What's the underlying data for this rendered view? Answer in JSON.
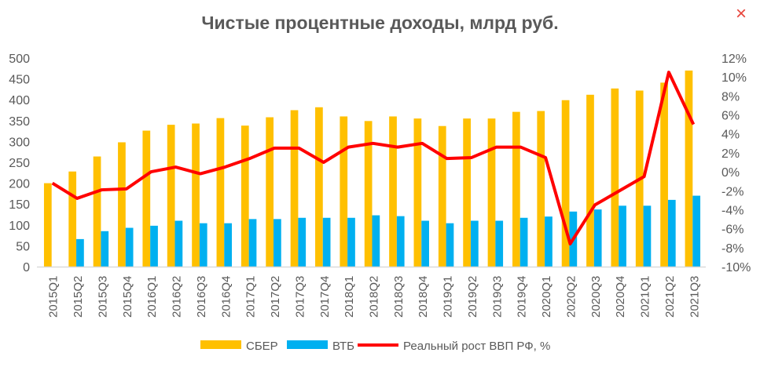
{
  "close_icon": "×",
  "chart_data": {
    "type": "bar",
    "title": "Чистые процентные доходы, млрд руб.",
    "categories": [
      "2015Q1",
      "2015Q2",
      "2015Q3",
      "2015Q4",
      "2016Q1",
      "2016Q2",
      "2016Q3",
      "2016Q4",
      "2017Q1",
      "2017Q2",
      "2017Q3",
      "2017Q4",
      "2018Q1",
      "2018Q2",
      "2018Q3",
      "2018Q4",
      "2019Q1",
      "2019Q2",
      "2019Q3",
      "2019Q4",
      "2020Q1",
      "2020Q2",
      "2020Q3",
      "2020Q4",
      "2021Q1",
      "2021Q2",
      "2021Q3"
    ],
    "series": [
      {
        "name": "СБЕР",
        "type": "bar",
        "axis": "left",
        "color": "#FFC000",
        "values": [
          200,
          228,
          264,
          298,
          326,
          340,
          343,
          356,
          338,
          358,
          375,
          382,
          360,
          349,
          360,
          355,
          337,
          355,
          355,
          371,
          373,
          399,
          412,
          427,
          422,
          441,
          470
        ]
      },
      {
        "name": "ВТБ",
        "type": "bar",
        "axis": "left",
        "color": "#00B0F0",
        "values": [
          null,
          66,
          85,
          93,
          98,
          110,
          104,
          104,
          114,
          114,
          117,
          117,
          117,
          123,
          121,
          110,
          104,
          110,
          110,
          117,
          120,
          132,
          137,
          146,
          146,
          160,
          170
        ]
      },
      {
        "name": "Реальный рост ВВП РФ, %",
        "type": "line",
        "axis": "right",
        "color": "#FF0000",
        "values": [
          -1.2,
          -2.8,
          -1.9,
          -1.8,
          0.0,
          0.5,
          -0.2,
          0.5,
          1.4,
          2.5,
          2.5,
          1.0,
          2.6,
          3.0,
          2.6,
          3.0,
          1.4,
          1.5,
          2.6,
          2.6,
          1.5,
          -7.6,
          -3.5,
          -2.0,
          -0.5,
          10.5,
          5.0
        ]
      }
    ],
    "y_left": {
      "ylim": [
        0,
        500
      ],
      "ticks": [
        "0",
        "50",
        "100",
        "150",
        "200",
        "250",
        "300",
        "350",
        "400",
        "450",
        "500"
      ]
    },
    "y_right": {
      "ylim": [
        -10,
        12
      ],
      "ticks": [
        "-10%",
        "-8%",
        "-6%",
        "-4%",
        "-2%",
        "0%",
        "2%",
        "4%",
        "6%",
        "8%",
        "10%",
        "12%"
      ]
    },
    "grid": false,
    "legend": "bottom"
  }
}
